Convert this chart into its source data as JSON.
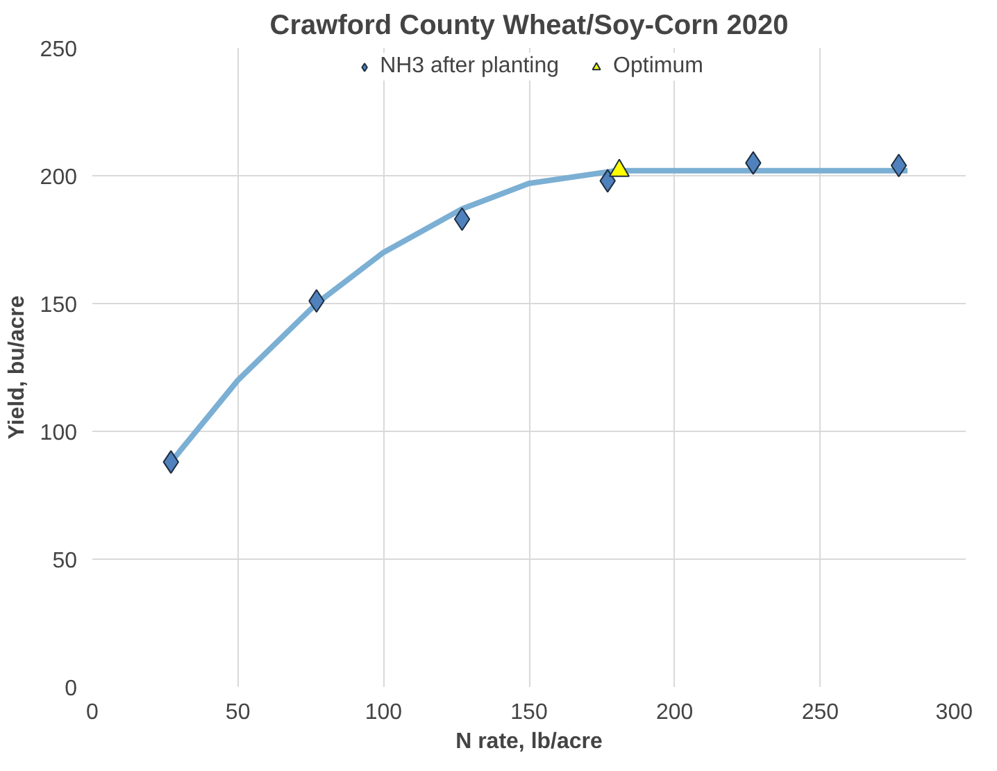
{
  "chart_data": {
    "type": "scatter",
    "title": "Crawford County Wheat/Soy-Corn 2020",
    "xlabel": "N rate, lb/acre",
    "ylabel": "Yield, bu/acre",
    "xlim": [
      0,
      300
    ],
    "xticks": [
      0,
      50,
      100,
      150,
      200,
      250,
      300
    ],
    "ylim": [
      0,
      250
    ],
    "yticks": [
      0,
      50,
      100,
      150,
      200,
      250
    ],
    "grid": true,
    "legend": "top",
    "series": [
      {
        "type": "line",
        "color": "#7bafd4",
        "line_style": "solid",
        "x": [
          27,
          50,
          77,
          100,
          127,
          150,
          180,
          280
        ],
        "values": [
          88,
          120,
          150,
          170,
          187,
          197,
          202,
          202
        ]
      },
      {
        "name": "NH3 after planting",
        "color": "#4f81bd",
        "marker": "diamond",
        "x": [
          27,
          77,
          127,
          177,
          227,
          277
        ],
        "values": [
          88,
          151,
          183,
          198,
          205,
          204
        ]
      },
      {
        "name": "Optimum",
        "color": "#ffff00",
        "marker": "triangle",
        "x": [
          181
        ],
        "values": [
          202
        ]
      }
    ]
  }
}
